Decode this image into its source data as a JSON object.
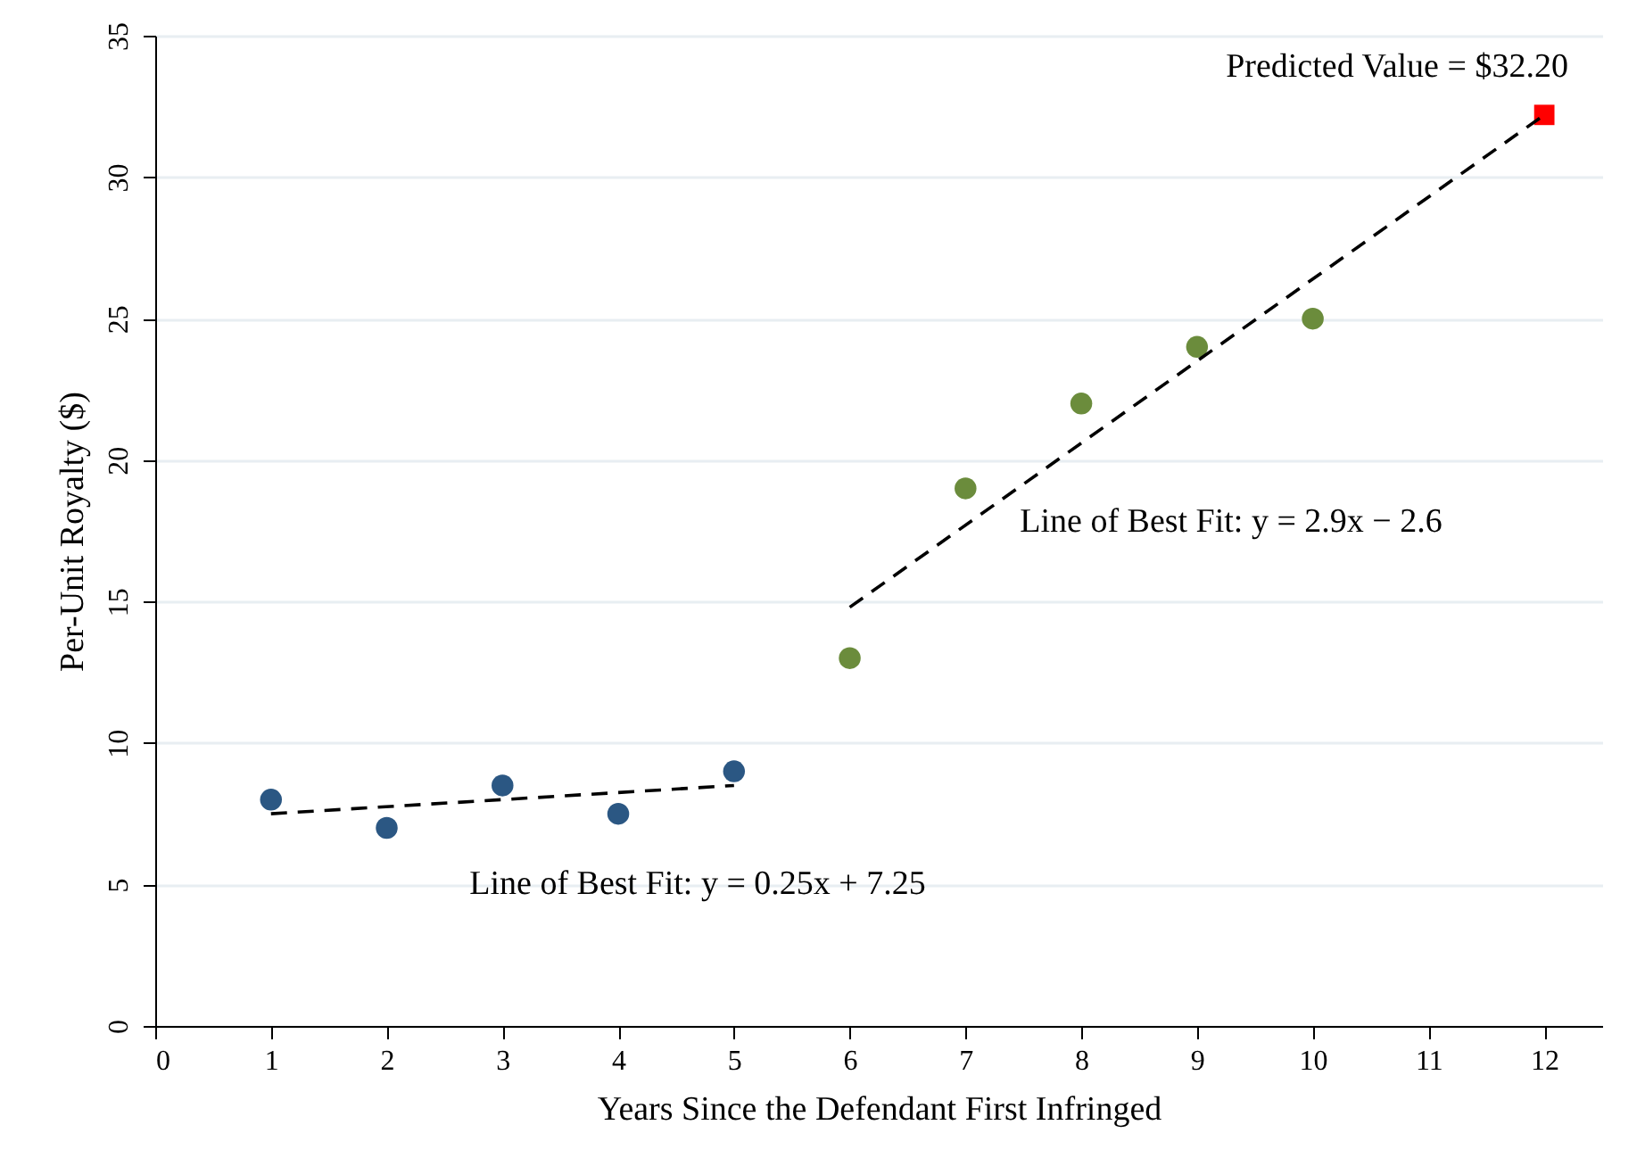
{
  "chart_data": {
    "type": "scatter",
    "xlabel": "Years Since the Defendant First Infringed",
    "ylabel": "Per-Unit Royalty ($)",
    "xlim": [
      0,
      12.5
    ],
    "xticks": [
      0,
      1,
      2,
      3,
      4,
      5,
      6,
      7,
      8,
      9,
      10,
      11,
      12
    ],
    "ylim": [
      0,
      35
    ],
    "yticks": [
      0,
      5,
      10,
      15,
      20,
      25,
      30,
      35
    ],
    "grid": "y",
    "series": [
      {
        "color": "#2b5783",
        "marker": "circle",
        "x": [
          1,
          2,
          3,
          4,
          5
        ],
        "values": [
          8,
          7,
          8.5,
          7.5,
          9
        ]
      },
      {
        "color": "#6b8c3c",
        "marker": "circle",
        "x": [
          6,
          7,
          8,
          9,
          10
        ],
        "values": [
          13,
          19,
          22,
          24,
          25
        ]
      },
      {
        "color": "#ff0000",
        "marker": "square",
        "x": [
          12
        ],
        "values": [
          32.2
        ]
      },
      {
        "type": "line",
        "color": "#000000",
        "line_style": "dashed",
        "x": [
          1,
          5
        ],
        "values": [
          7.5,
          8.5
        ]
      },
      {
        "type": "line",
        "color": "#000000",
        "line_style": "dashed",
        "x": [
          6,
          12
        ],
        "values": [
          14.8,
          32.2
        ]
      }
    ],
    "annotations": [
      "Predicted Value = $32.20",
      "Line of Best Fit: y = 0.25x + 7.25",
      "Line of Best Fit: y = 2.9x − 2.6"
    ]
  }
}
